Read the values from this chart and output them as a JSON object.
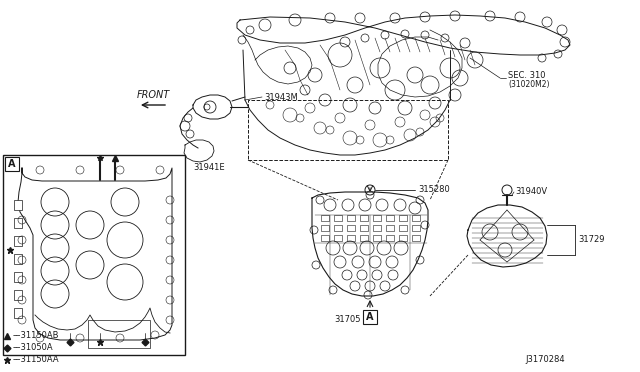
{
  "background_color": "#ffffff",
  "fig_width": 6.4,
  "fig_height": 3.72,
  "dpi": 100,
  "labels": {
    "front": "FRONT",
    "p31943M": "31943M",
    "p31941E": "31941E",
    "sec310": "SEC. 310",
    "sec310sub": "(31020M2)",
    "p315280": "315280",
    "p31705": "31705",
    "p31940V": "31940V",
    "p31729": "31729",
    "diagram_id": "J3170284",
    "legend1": "★––31150AA",
    "legend2": "◆––31050A",
    "legend3": "▲––31150AB"
  },
  "colors": {
    "line": "#1a1a1a",
    "bg": "#ffffff"
  }
}
